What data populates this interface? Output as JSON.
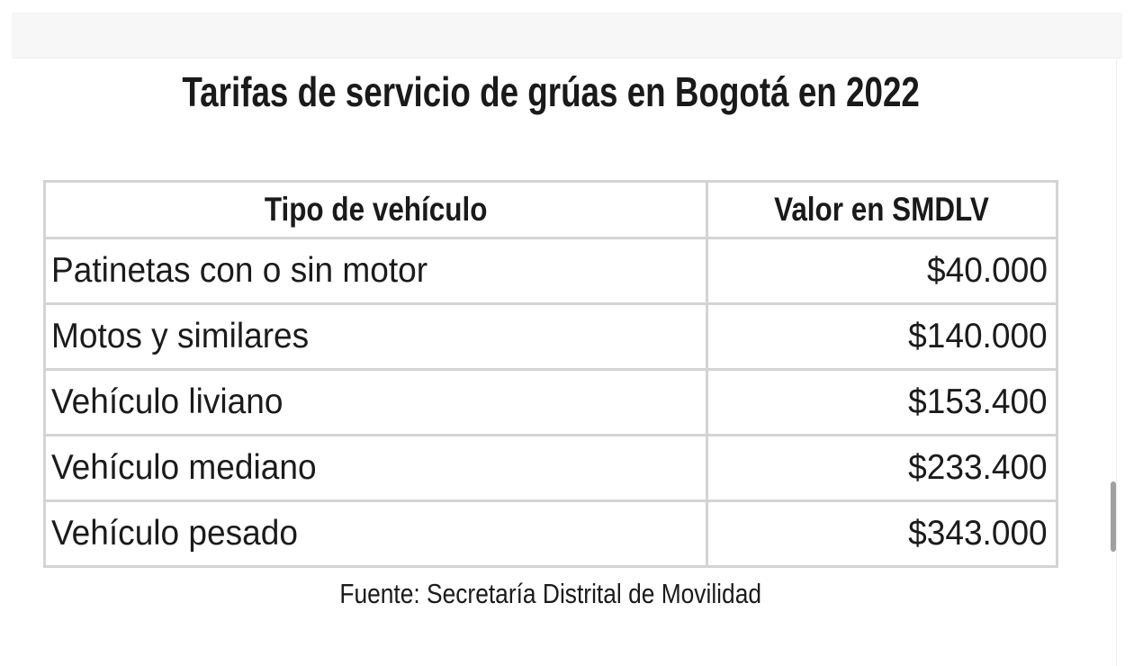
{
  "page": {
    "title": "Tarifas de servicio de grúas en Bogotá en 2022",
    "source_note": "Fuente: Secretaría Distrital de Movilidad"
  },
  "table": {
    "headers": {
      "tipo": "Tipo de vehículo",
      "valor": "Valor en SMDLV"
    },
    "rows": [
      {
        "tipo": "Patinetas con o sin motor",
        "valor": "$40.000"
      },
      {
        "tipo": "Motos y similares",
        "valor": "$140.000"
      },
      {
        "tipo": "Vehículo liviano",
        "valor": "$153.400"
      },
      {
        "tipo": "Vehículo mediano",
        "valor": "$233.400"
      },
      {
        "tipo": "Vehículo pesado",
        "valor": "$343.000"
      }
    ]
  },
  "colors": {
    "text": "#1b1b1b",
    "table_border": "#d4d4d4",
    "toolbar_bg": "#f7f7f7",
    "scrollbar_thumb": "#a0a0a0"
  }
}
